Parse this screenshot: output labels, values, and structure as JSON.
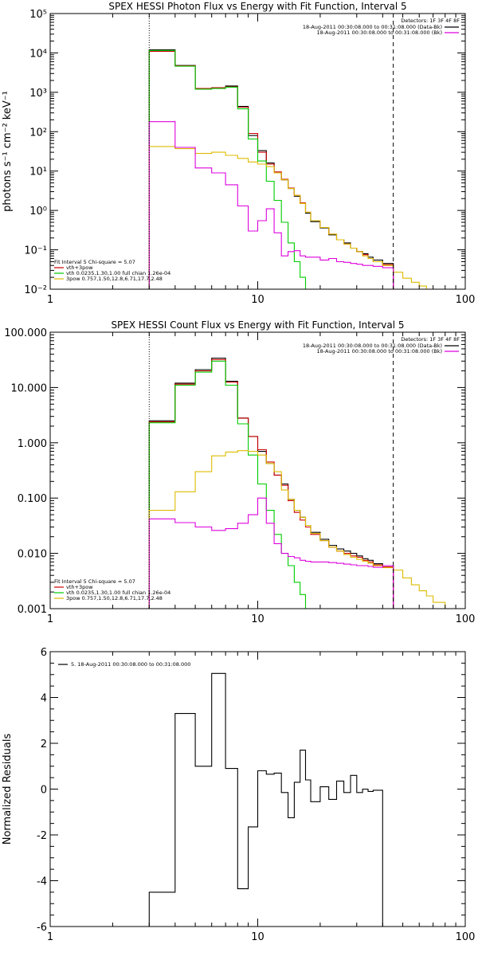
{
  "chart_data": [
    {
      "type": "line",
      "title": "SPEX HESSI Photon Flux vs Energy with Fit Function, Interval 5",
      "ylabel": "photons s⁻¹ cm⁻² keV⁻¹",
      "xscale": "log",
      "yscale": "log",
      "xlim": [
        1,
        100
      ],
      "ylim": [
        0.01,
        100000
      ],
      "x_ticks": [
        1,
        10,
        100
      ],
      "x_tick_labels": [
        "1",
        "10",
        "100"
      ],
      "y_ticks": [
        0.01,
        0.1,
        1,
        10,
        100,
        1000,
        10000,
        100000
      ],
      "y_tick_labels": [
        "10⁻²",
        "10⁻¹",
        "10⁰",
        "10¹",
        "10²",
        "10³",
        "10⁴",
        "10⁵"
      ],
      "vlines": [
        {
          "x": 3,
          "style": "dotted"
        },
        {
          "x": 45,
          "style": "dashed"
        }
      ],
      "legend_right": {
        "title": "Detectors: 1F 3F 4F 8F",
        "entries": [
          {
            "label": "18-Aug-2011 00:30:08.000 to 00:31:08.000 (Data-Bk)",
            "color": "#000000"
          },
          {
            "label": "18-Aug-2011 00:30:08.000 to 00:31:08.000 (Bk)",
            "color": "#dd00dd"
          }
        ]
      },
      "legend_left": {
        "title": "Fit Interval 5   Chi-square = 5.07",
        "entries": [
          {
            "label": "vth+3pow",
            "color": "#cc0000"
          },
          {
            "label": "vth 0.0235,1.30,1.00  full chian 1.26e-04",
            "color": "#00cc00"
          },
          {
            "label": "3pow 0.757,1.50,12.8,6.71,17.7,2.48",
            "color": "#ddbb00"
          }
        ]
      },
      "series": [
        {
          "role": "data",
          "color": "#000000",
          "edges": [
            3,
            4,
            5,
            6,
            7,
            8,
            9,
            10,
            11,
            12,
            13,
            14,
            15,
            16,
            17,
            18,
            20,
            22,
            24,
            26,
            28,
            30,
            32,
            34,
            36,
            40,
            45
          ],
          "values": [
            12000,
            4800,
            1250,
            1300,
            1450,
            440,
            80,
            33,
            16,
            9,
            6,
            3.6,
            2.3,
            1.5,
            0.85,
            0.52,
            0.36,
            0.24,
            0.18,
            0.15,
            0.11,
            0.09,
            0.08,
            0.065,
            0.055,
            0.045
          ]
        },
        {
          "role": "red",
          "color": "#cc0000",
          "edges": [
            3,
            4,
            5,
            6,
            7,
            8,
            9,
            10,
            11,
            12,
            13,
            14,
            15,
            16,
            17,
            18,
            20,
            22,
            24,
            26,
            28,
            30,
            32,
            34,
            36,
            40,
            45
          ],
          "values": [
            11000,
            4700,
            1250,
            1300,
            1380,
            420,
            90,
            30,
            15,
            9.5,
            6.2,
            3.7,
            2.4,
            1.55,
            0.9,
            0.55,
            0.37,
            0.25,
            0.18,
            0.14,
            0.11,
            0.09,
            0.075,
            0.06,
            0.05,
            0.042
          ]
        },
        {
          "role": "green",
          "color": "#00cc00",
          "edges": [
            3,
            4,
            5,
            6,
            7,
            8,
            9,
            10,
            11,
            12,
            13,
            14,
            15,
            16,
            17,
            18
          ],
          "values": [
            11500,
            4600,
            1200,
            1250,
            1350,
            380,
            65,
            18,
            5.5,
            1.8,
            0.5,
            0.15,
            0.05,
            0.02,
            0.0095
          ]
        },
        {
          "role": "yellow",
          "color": "#ddbb00",
          "edges": [
            3,
            4,
            5,
            6,
            7,
            8,
            9,
            10,
            11,
            12,
            13,
            14,
            15,
            16,
            17,
            18,
            20,
            22,
            24,
            26,
            28,
            30,
            32,
            34,
            36,
            40,
            45,
            50,
            55,
            60,
            65,
            70
          ],
          "values": [
            42,
            37,
            28,
            30,
            25,
            21,
            17,
            15,
            13,
            9,
            6,
            3.6,
            2.4,
            1.5,
            0.9,
            0.55,
            0.37,
            0.25,
            0.18,
            0.14,
            0.11,
            0.09,
            0.07,
            0.06,
            0.05,
            0.04,
            0.027,
            0.019,
            0.015,
            0.012,
            0.01
          ]
        },
        {
          "role": "magenta",
          "color": "#dd00dd",
          "edges": [
            3,
            4,
            5,
            6,
            7,
            8,
            9,
            10,
            11,
            12,
            13,
            14,
            15,
            16,
            17,
            18,
            20,
            22,
            24,
            26,
            28,
            30,
            32,
            34,
            36,
            40,
            45
          ],
          "values": [
            180,
            40,
            12,
            9,
            4.5,
            1.3,
            0.3,
            0.55,
            1.1,
            0.27,
            0.07,
            0.09,
            0.095,
            0.07,
            0.065,
            0.065,
            0.055,
            0.06,
            0.05,
            0.048,
            0.045,
            0.043,
            0.04,
            0.04,
            0.038,
            0.035
          ]
        }
      ]
    },
    {
      "type": "line",
      "title": "SPEX HESSI Count Flux vs Energy with Fit Function, Interval 5",
      "ylabel": "",
      "xscale": "log",
      "yscale": "log",
      "xlim": [
        1,
        100
      ],
      "ylim": [
        0.001,
        100
      ],
      "x_ticks": [
        1,
        10,
        100
      ],
      "x_tick_labels": [
        "1",
        "10",
        "100"
      ],
      "y_ticks": [
        0.001,
        0.01,
        0.1,
        1,
        10,
        100
      ],
      "y_tick_labels": [
        "0.001",
        "0.010",
        "0.100",
        "1.000",
        "10.000",
        "100.000"
      ],
      "vlines": [
        {
          "x": 3,
          "style": "dotted"
        },
        {
          "x": 45,
          "style": "dashed"
        }
      ],
      "legend_right": {
        "title": "Detectors: 1F 3F 4F 8F",
        "entries": [
          {
            "label": "18-Aug-2011 00:30:08.000 to 00:31:08.000 (Data-Bk)",
            "color": "#000000"
          },
          {
            "label": "18-Aug-2011 00:30:08.000 to 00:31:08.000 (Bk)",
            "color": "#dd00dd"
          }
        ]
      },
      "legend_left": {
        "title": "Fit Interval 5   Chi-square = 5.07",
        "entries": [
          {
            "label": "vth+3pow",
            "color": "#cc0000"
          },
          {
            "label": "vth 0.0235,1.30,1.00  full chian 1.26e-04",
            "color": "#00cc00"
          },
          {
            "label": "3pow 0.757,1.50,12.8,6.71,17.7,2.48",
            "color": "#ddbb00"
          }
        ]
      },
      "series": [
        {
          "role": "data",
          "color": "#000000",
          "edges": [
            3,
            4,
            5,
            6,
            7,
            8,
            9,
            10,
            11,
            12,
            13,
            14,
            15,
            16,
            17,
            18,
            20,
            22,
            24,
            26,
            28,
            30,
            32,
            34,
            36,
            40,
            45
          ],
          "values": [
            2.5,
            12,
            21,
            34,
            13,
            2.8,
            1.3,
            0.7,
            0.42,
            0.26,
            0.18,
            0.095,
            0.06,
            0.045,
            0.032,
            0.024,
            0.018,
            0.014,
            0.012,
            0.011,
            0.01,
            0.009,
            0.008,
            0.0075,
            0.0065,
            0.006
          ]
        },
        {
          "role": "red",
          "color": "#cc0000",
          "edges": [
            3,
            4,
            5,
            6,
            7,
            8,
            9,
            10,
            11,
            12,
            13,
            14,
            15,
            16,
            17,
            18,
            20,
            22,
            24,
            26,
            28,
            30,
            32,
            34,
            36,
            40,
            45
          ],
          "values": [
            2.4,
            11.5,
            20,
            32,
            12.5,
            2.8,
            1.3,
            0.75,
            0.45,
            0.26,
            0.17,
            0.09,
            0.055,
            0.04,
            0.03,
            0.022,
            0.017,
            0.013,
            0.011,
            0.01,
            0.009,
            0.0085,
            0.0075,
            0.007,
            0.0062,
            0.0057
          ]
        },
        {
          "role": "green",
          "color": "#00cc00",
          "edges": [
            3,
            4,
            5,
            6,
            7,
            8,
            9,
            10,
            11,
            12,
            13,
            14,
            15,
            16,
            17,
            18
          ],
          "values": [
            2.3,
            11,
            19,
            30,
            11,
            2.2,
            0.6,
            0.18,
            0.06,
            0.022,
            0.01,
            0.006,
            0.003,
            0.0018,
            0.001
          ]
        },
        {
          "role": "yellow",
          "color": "#ddbb00",
          "edges": [
            3,
            4,
            5,
            6,
            7,
            8,
            9,
            10,
            11,
            12,
            13,
            14,
            15,
            16,
            17,
            18,
            20,
            22,
            24,
            26,
            28,
            30,
            32,
            34,
            36,
            40,
            45,
            50,
            55,
            60,
            65,
            70,
            80,
            90
          ],
          "values": [
            0.06,
            0.13,
            0.3,
            0.58,
            0.68,
            0.72,
            0.7,
            0.6,
            0.42,
            0.3,
            0.14,
            0.095,
            0.06,
            0.045,
            0.032,
            0.023,
            0.017,
            0.013,
            0.011,
            0.0095,
            0.0085,
            0.0078,
            0.0072,
            0.0066,
            0.006,
            0.0055,
            0.005,
            0.0036,
            0.0027,
            0.0021,
            0.0017,
            0.0013,
            0.001
          ]
        },
        {
          "role": "magenta",
          "color": "#dd00dd",
          "edges": [
            3,
            4,
            5,
            6,
            7,
            8,
            9,
            10,
            11,
            12,
            13,
            14,
            15,
            16,
            17,
            18,
            20,
            22,
            24,
            26,
            28,
            30,
            32,
            34,
            36,
            40,
            45
          ],
          "values": [
            0.042,
            0.036,
            0.03,
            0.026,
            0.028,
            0.035,
            0.05,
            0.1,
            0.035,
            0.015,
            0.01,
            0.0088,
            0.0083,
            0.0075,
            0.0072,
            0.007,
            0.007,
            0.0068,
            0.0066,
            0.0064,
            0.0062,
            0.006,
            0.006,
            0.0058,
            0.0056,
            0.006
          ]
        }
      ]
    },
    {
      "type": "line",
      "title": "",
      "ylabel": "Normalized Residuals",
      "xscale": "log",
      "yscale": "linear",
      "xlim": [
        1,
        100
      ],
      "ylim": [
        -6,
        6
      ],
      "x_ticks": [
        1,
        10,
        100
      ],
      "x_tick_labels": [
        "1",
        "10",
        "100"
      ],
      "y_ticks": [
        -6,
        -4,
        -2,
        0,
        2,
        4,
        6
      ],
      "y_tick_labels": [
        "-6",
        "-4",
        "-2",
        "0",
        "2",
        "4",
        "6"
      ],
      "legend_entry": {
        "label": "5. 18-Aug-2011 00:30:08.000 to 00:31:08.000",
        "color": "#000000"
      },
      "series": [
        {
          "role": "residuals",
          "color": "#000000",
          "edges": [
            3,
            4,
            5,
            6,
            7,
            8,
            9,
            10,
            11,
            12,
            13,
            14,
            15,
            16,
            17,
            18,
            20,
            22,
            24,
            26,
            28,
            30,
            32,
            34,
            36,
            40,
            45
          ],
          "values": [
            -4.5,
            3.3,
            1.0,
            5.05,
            0.9,
            -4.35,
            -1.65,
            0.8,
            0.65,
            0.7,
            -0.15,
            -1.25,
            0.3,
            1.7,
            0.4,
            -0.55,
            0.1,
            -0.45,
            0.35,
            -0.15,
            0.6,
            -0.15,
            0.0,
            -0.1,
            -0.05,
            -6.0
          ]
        }
      ]
    }
  ]
}
